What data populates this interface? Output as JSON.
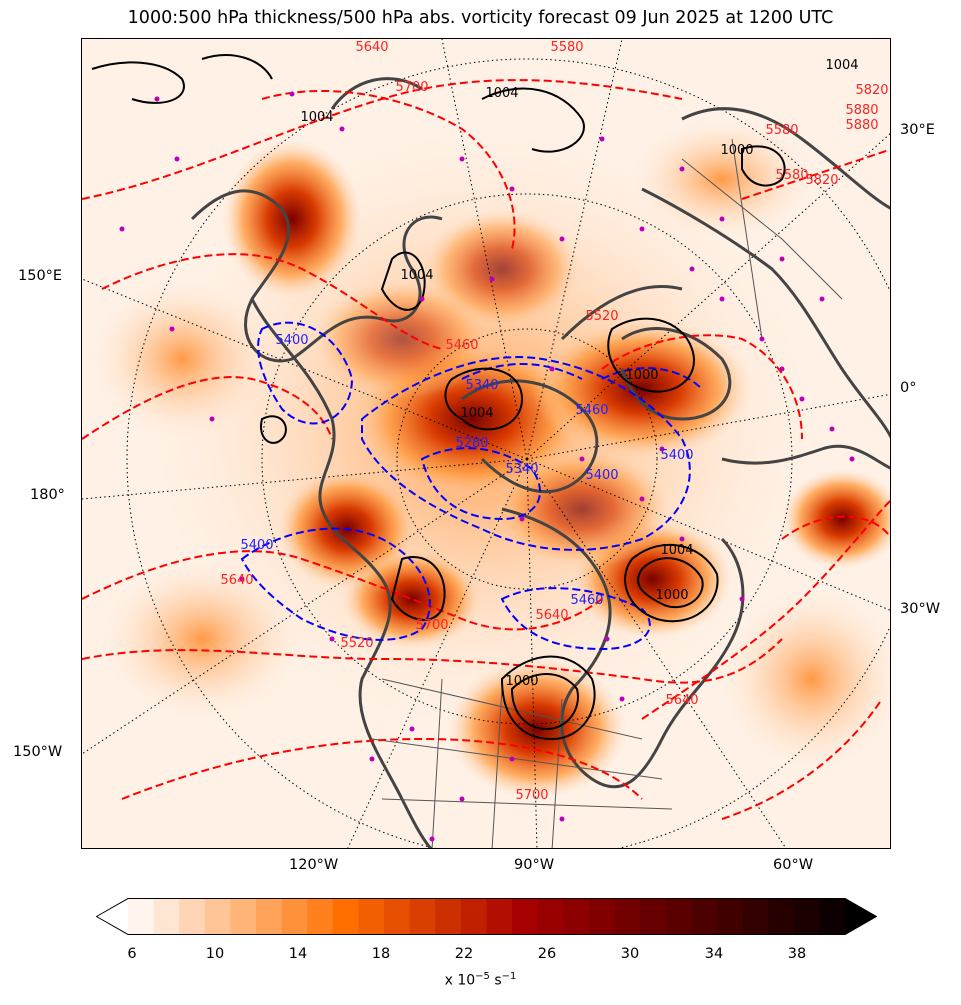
{
  "title": "1000:500 hPa thickness/500 hPa abs. vorticity forecast 09 Jun 2025 at 1200 UTC",
  "map": {
    "projection": "north-polar-stereographic",
    "longitude_labels": {
      "right_30e": "30°E",
      "right_0": "0°",
      "right_30w": "30°W",
      "left_150e": "150°E",
      "left_180": "180°",
      "left_150w": "150°W",
      "bottom_120w": "120°W",
      "bottom_90w": "90°W",
      "bottom_60w": "60°W"
    },
    "colors": {
      "thickness_warm": "#ff0000",
      "thickness_cold": "#0000ff",
      "mslp_contours": "#000000",
      "coastlines": "#444444",
      "pressure_centers": "#bb00bb"
    },
    "contour_labels": {
      "thickness_red": [
        "5640",
        "5580",
        "5820",
        "5880",
        "5700",
        "5460",
        "5520",
        "5580",
        "5640",
        "5700",
        "5520",
        "5580",
        "5640",
        "5700",
        "5880",
        "5820",
        "5640"
      ],
      "thickness_blue": [
        "5400",
        "5340",
        "5280",
        "5340",
        "5400",
        "5400",
        "5460",
        "5400",
        "5460"
      ],
      "mslp_black": [
        "1004",
        "1004",
        "1000",
        "1004",
        "1004",
        "1004",
        "1004",
        "1000",
        "1000",
        "1000"
      ]
    }
  },
  "colorbar": {
    "ticks": [
      "6",
      "10",
      "14",
      "18",
      "22",
      "26",
      "30",
      "34",
      "38"
    ],
    "unit_base": "x 10",
    "unit_exp1": "−5",
    "unit_mid": " s",
    "unit_exp2": "−1",
    "colors": [
      "#fff5ee",
      "#ffe6d3",
      "#ffd5b5",
      "#ffc596",
      "#ffb478",
      "#ffa35a",
      "#ff913b",
      "#ff801d",
      "#ff6f00",
      "#f25f00",
      "#e64f00",
      "#d93f00",
      "#cc2f00",
      "#c01f00",
      "#b30f00",
      "#a60000",
      "#990000",
      "#8c0000",
      "#800000",
      "#730000",
      "#660000",
      "#5a0000",
      "#4d0000",
      "#400000",
      "#330000",
      "#260000",
      "#1a0000",
      "#0d0000"
    ]
  }
}
